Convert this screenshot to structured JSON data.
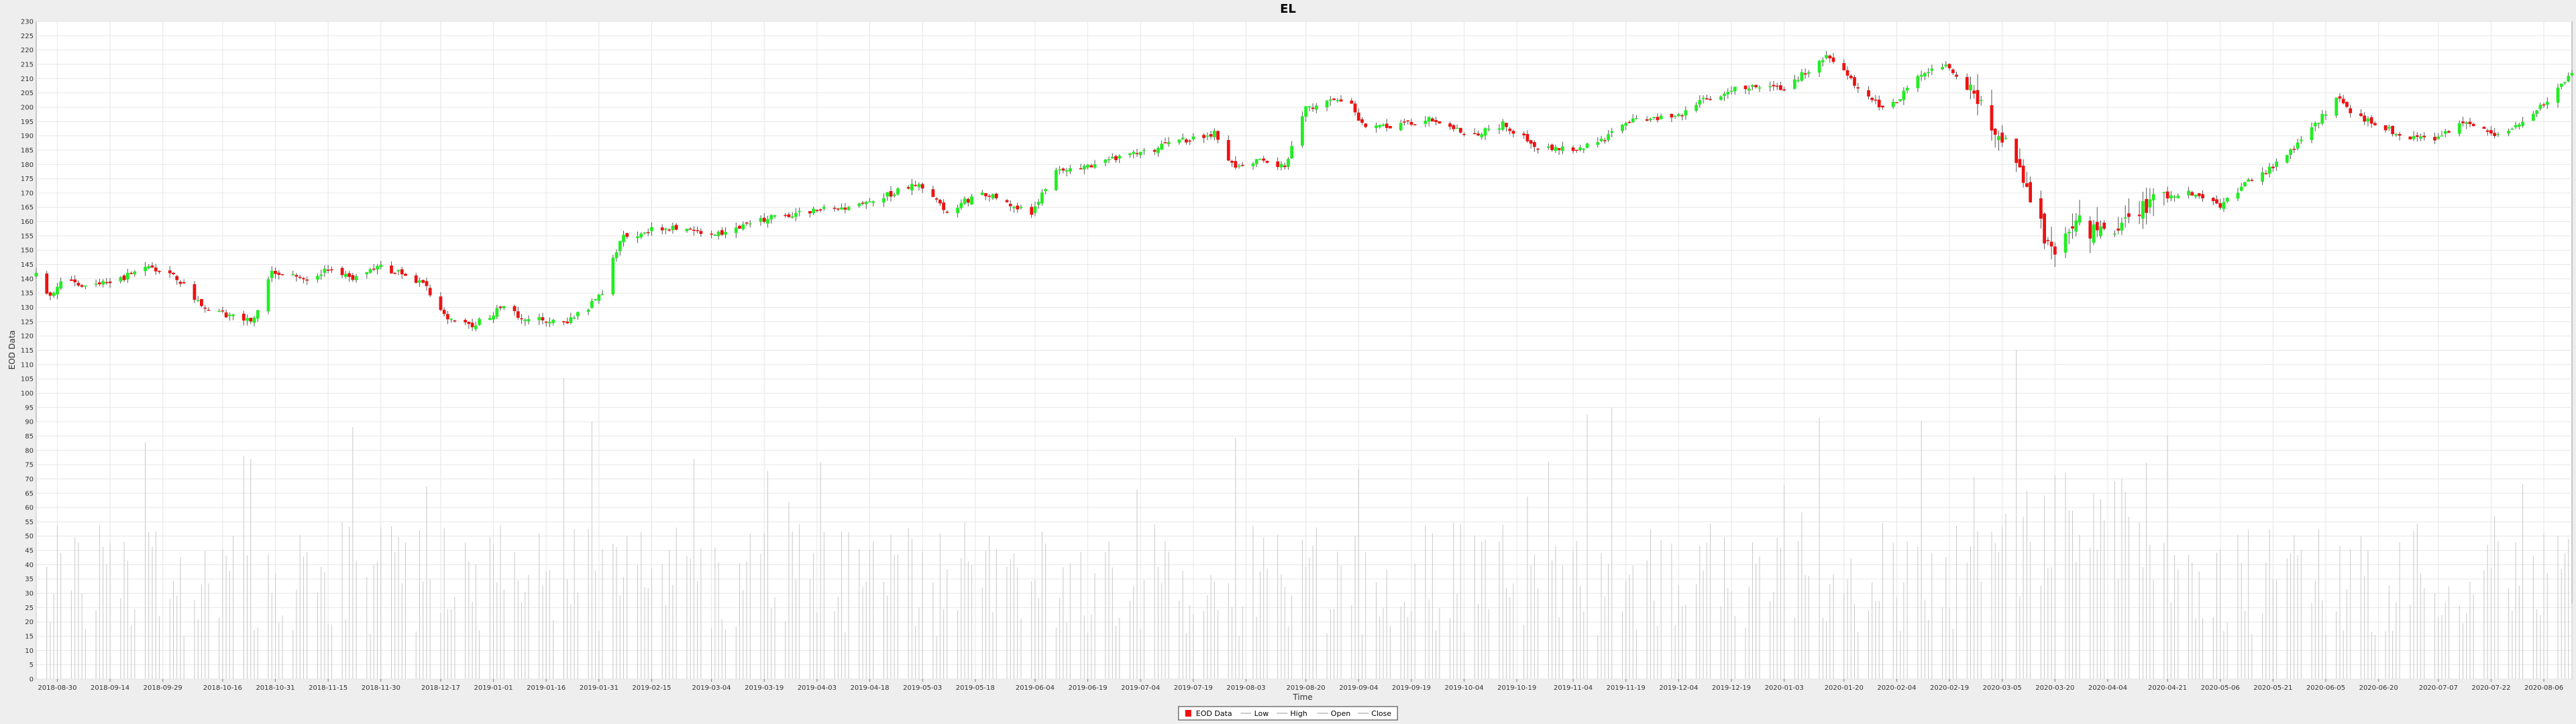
{
  "chart_data": {
    "type": "candlestick",
    "title": "EL",
    "xlabel": "Time",
    "ylabel": "EOD Data",
    "ylim": [
      0,
      230
    ],
    "ytick_step": 5,
    "x_range": [
      "2018-08-24",
      "2020-08-14"
    ],
    "x_ticks": [
      "2018-08-30",
      "2018-09-14",
      "2018-09-29",
      "2018-10-16",
      "2018-10-31",
      "2018-11-15",
      "2018-11-30",
      "2018-12-17",
      "2019-01-01",
      "2019-01-16",
      "2019-01-31",
      "2019-02-15",
      "2019-03-04",
      "2019-03-19",
      "2019-04-03",
      "2019-04-18",
      "2019-05-03",
      "2019-05-18",
      "2019-06-04",
      "2019-06-19",
      "2019-07-04",
      "2019-07-19",
      "2019-08-03",
      "2019-08-20",
      "2019-09-04",
      "2019-09-19",
      "2019-10-04",
      "2019-10-19",
      "2019-11-04",
      "2019-11-19",
      "2019-12-04",
      "2019-12-19",
      "2020-01-03",
      "2020-01-20",
      "2020-02-04",
      "2020-02-19",
      "2020-03-05",
      "2020-03-20",
      "2020-04-04",
      "2020-04-21",
      "2020-05-06",
      "2020-05-21",
      "2020-06-05",
      "2020-06-20",
      "2020-07-07",
      "2020-07-22",
      "2020-08-06"
    ],
    "price_path": [
      [
        "2018-08-24",
        141
      ],
      [
        "2018-08-28",
        134
      ],
      [
        "2018-09-01",
        140
      ],
      [
        "2018-09-08",
        137
      ],
      [
        "2018-09-15",
        139
      ],
      [
        "2018-09-25",
        144
      ],
      [
        "2018-10-03",
        140
      ],
      [
        "2018-10-10",
        131
      ],
      [
        "2018-10-18",
        127
      ],
      [
        "2018-10-25",
        126
      ],
      [
        "2018-10-30",
        142
      ],
      [
        "2018-11-08",
        140
      ],
      [
        "2018-11-15",
        143
      ],
      [
        "2018-11-22",
        140
      ],
      [
        "2018-11-29",
        145
      ],
      [
        "2018-12-05",
        142
      ],
      [
        "2018-12-12",
        138
      ],
      [
        "2018-12-20",
        125
      ],
      [
        "2018-12-26",
        124
      ],
      [
        "2019-01-04",
        130
      ],
      [
        "2019-01-10",
        126
      ],
      [
        "2019-01-22",
        125
      ],
      [
        "2019-01-28",
        130
      ],
      [
        "2019-02-01",
        135
      ],
      [
        "2019-02-06",
        154
      ],
      [
        "2019-02-15",
        157
      ],
      [
        "2019-02-25",
        158
      ],
      [
        "2019-03-05",
        155
      ],
      [
        "2019-03-15",
        160
      ],
      [
        "2019-03-28",
        163
      ],
      [
        "2019-04-10",
        165
      ],
      [
        "2019-04-20",
        168
      ],
      [
        "2019-05-01",
        173
      ],
      [
        "2019-05-10",
        164
      ],
      [
        "2019-05-20",
        170
      ],
      [
        "2019-06-03",
        163
      ],
      [
        "2019-06-10",
        178
      ],
      [
        "2019-06-20",
        180
      ],
      [
        "2019-07-01",
        183
      ],
      [
        "2019-07-15",
        188
      ],
      [
        "2019-07-25",
        191
      ],
      [
        "2019-07-31",
        178
      ],
      [
        "2019-08-06",
        182
      ],
      [
        "2019-08-14",
        179
      ],
      [
        "2019-08-20",
        200
      ],
      [
        "2019-09-01",
        203
      ],
      [
        "2019-09-06",
        192
      ],
      [
        "2019-09-15",
        194
      ],
      [
        "2019-09-25",
        196
      ],
      [
        "2019-10-05",
        190
      ],
      [
        "2019-10-15",
        194
      ],
      [
        "2019-10-25",
        186
      ],
      [
        "2019-11-04",
        185
      ],
      [
        "2019-11-12",
        188
      ],
      [
        "2019-11-20",
        195
      ],
      [
        "2019-12-04",
        197
      ],
      [
        "2019-12-12",
        203
      ],
      [
        "2019-12-22",
        207
      ],
      [
        "2020-01-03",
        207
      ],
      [
        "2020-01-10",
        213
      ],
      [
        "2020-01-16",
        218
      ],
      [
        "2020-01-24",
        207
      ],
      [
        "2020-02-01",
        198
      ],
      [
        "2020-02-11",
        212
      ],
      [
        "2020-02-18",
        215
      ],
      [
        "2020-02-26",
        203
      ],
      [
        "2020-03-05",
        190
      ],
      [
        "2020-03-13",
        170
      ],
      [
        "2020-03-19",
        148
      ],
      [
        "2020-03-25",
        160
      ],
      [
        "2020-04-02",
        155
      ],
      [
        "2020-04-10",
        162
      ],
      [
        "2020-04-18",
        168
      ],
      [
        "2020-04-28",
        170
      ],
      [
        "2020-05-06",
        165
      ],
      [
        "2020-05-14",
        174
      ],
      [
        "2020-05-22",
        180
      ],
      [
        "2020-06-01",
        192
      ],
      [
        "2020-06-08",
        203
      ],
      [
        "2020-06-15",
        196
      ],
      [
        "2020-06-25",
        191
      ],
      [
        "2020-07-05",
        188
      ],
      [
        "2020-07-15",
        195
      ],
      [
        "2020-07-25",
        190
      ],
      [
        "2020-08-05",
        200
      ],
      [
        "2020-08-14",
        212
      ]
    ],
    "volume_max": 115,
    "colors": {
      "up": "#22ee22",
      "down": "#ee1111",
      "wick": "#555555",
      "volume": "#c8c8c8",
      "grid": "#e6e6e6",
      "plot_bg": "#ffffff",
      "page_bg": "#eeeeee"
    },
    "grid": true,
    "legend": {
      "placement": "bottom-center",
      "items": [
        {
          "label": "EOD Data",
          "marker": "square"
        },
        {
          "label": "Low",
          "marker": "line"
        },
        {
          "label": "High",
          "marker": "line"
        },
        {
          "label": "Open",
          "marker": "line"
        },
        {
          "label": "Close",
          "marker": "line"
        }
      ]
    }
  }
}
